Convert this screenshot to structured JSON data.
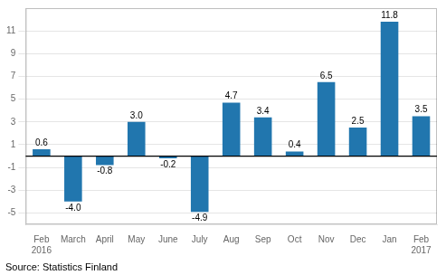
{
  "chart_data": {
    "type": "bar",
    "categories": [
      "Feb\n2016",
      "March",
      "April",
      "May",
      "June",
      "July",
      "Aug",
      "Sep",
      "Oct",
      "Nov",
      "Dec",
      "Jan",
      "Feb\n2017"
    ],
    "values": [
      0.6,
      -4.0,
      -0.8,
      3.0,
      -0.2,
      -4.9,
      4.7,
      3.4,
      0.4,
      6.5,
      2.5,
      11.8,
      3.5
    ],
    "value_labels": [
      "0.6",
      "-4.0",
      "-0.8",
      "3.0",
      "-0.2",
      "-4.9",
      "4.7",
      "3.4",
      "0.4",
      "6.5",
      "2.5",
      "11.8",
      "3.5"
    ],
    "data_labels": true,
    "color": "#2176ae",
    "ylim": [
      -6,
      13
    ],
    "yticks": [
      -5,
      -3,
      -1,
      1,
      3,
      5,
      7,
      9,
      11
    ],
    "grid": true,
    "annotations": [
      "Source: Statistics Finland"
    ]
  }
}
